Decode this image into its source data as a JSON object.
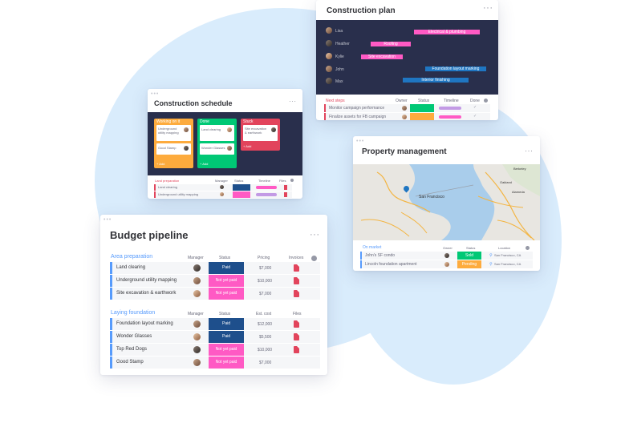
{
  "construction_plan": {
    "title": "Construction plan",
    "people": [
      "Lisa",
      "Heather",
      "Kylie",
      "John",
      "Max"
    ],
    "gantt_bars": [
      {
        "label": "Electrical & plumbing",
        "color": "#ff5ac4"
      },
      {
        "label": "Roofing",
        "color": "#ff5ac4"
      },
      {
        "label": "Site excavation",
        "color": "#ff5ac4"
      },
      {
        "label": "Foundation layout marking",
        "color": "#1f76c2"
      },
      {
        "label": "Interior finishing",
        "color": "#1f76c2"
      }
    ],
    "group_label": "Next steps",
    "headers": [
      "Owner",
      "Status",
      "Timeline",
      "Done"
    ],
    "rows": [
      {
        "name": "Monitor campaign performance",
        "status_color": "#00c875"
      },
      {
        "name": "Finalize assets for FB campaign",
        "status_color": "#fdab3d"
      }
    ]
  },
  "construction_schedule": {
    "title": "Construction schedule",
    "columns": [
      {
        "header": "Working on it",
        "color": "#fdab3d",
        "cards": [
          "Underground utility mapping",
          "Good Stamp"
        ],
        "footer": "+ Add"
      },
      {
        "header": "Done",
        "color": "#00c875",
        "cards": [
          "Land clearing",
          "Wonder Glasses"
        ],
        "footer": "+ Add"
      },
      {
        "header": "Stuck",
        "color": "#e2445c",
        "cards": [
          "Site excavation & earthwork"
        ],
        "footer": "+ Add"
      }
    ],
    "group_label": "Land preparation",
    "headers": [
      "Manager",
      "Status",
      "Timeline",
      "Files"
    ],
    "rows": [
      "Land clearing",
      "Underground utility mapping"
    ]
  },
  "property_management": {
    "title": "Property management",
    "map_labels": {
      "sf": "San Francisco",
      "oakland": "Oakland",
      "alameda": "Alameda",
      "berkeley": "Berkeley"
    },
    "group_label": "On market",
    "headers": [
      "Owner",
      "Status",
      "Location"
    ],
    "rows": [
      {
        "name": "John's SF condo",
        "status": "Sold",
        "status_color": "#00c875",
        "location": "San Francisco, CA"
      },
      {
        "name": "Lincoln foundation apartment",
        "status": "Pending",
        "status_color": "#fdab3d",
        "location": "San Francisco, CA"
      }
    ]
  },
  "budget_pipeline": {
    "title": "Budget pipeline",
    "groups": [
      {
        "label": "Area preparation",
        "label_color": "#579bfc",
        "headers": [
          "Manager",
          "Status",
          "Pricing",
          "Invoices"
        ],
        "rows": [
          {
            "name": "Land clearing",
            "status": "Paid",
            "status_color": "#1e4f8c",
            "amount": "$7,000"
          },
          {
            "name": "Underground utility mapping",
            "status": "Not yet paid",
            "status_color": "#ff5ac4",
            "amount": "$10,000"
          },
          {
            "name": "Site excavation & earthwork",
            "status": "Not yet paid",
            "status_color": "#ff5ac4",
            "amount": "$7,000"
          }
        ]
      },
      {
        "label": "Laying foundation",
        "label_color": "#579bfc",
        "headers": [
          "Manager",
          "Status",
          "Est. cost",
          "Files"
        ],
        "rows": [
          {
            "name": "Foundation layout marking",
            "status": "Paid",
            "status_color": "#1e4f8c",
            "amount": "$12,000"
          },
          {
            "name": "Wonder Glasses",
            "status": "Paid",
            "status_color": "#1e4f8c",
            "amount": "$5,500"
          },
          {
            "name": "Top Red Dogs",
            "status": "Not yet paid",
            "status_color": "#ff5ac4",
            "amount": "$10,000"
          },
          {
            "name": "Good Stamp",
            "status": "Not yet paid",
            "status_color": "#ff5ac4",
            "amount": "$7,000"
          }
        ]
      }
    ]
  },
  "colors": {
    "background_blob": "#d9ecfc",
    "dark_panel": "#292f4c",
    "accent_blue": "#579bfc"
  }
}
